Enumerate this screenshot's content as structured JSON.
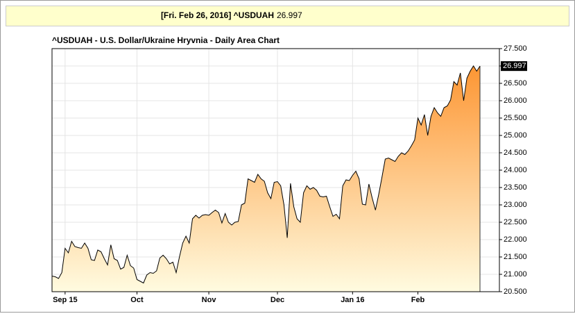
{
  "header": {
    "label": "[Fri. Feb 26, 2016] ^USDUAH"
  },
  "chart_data": {
    "type": "area",
    "title": "^USDUAH - U.S. Dollar/Ukraine Hryvnia - Daily Area Chart",
    "categories": [
      null,
      null,
      null,
      null,
      "Sep 15",
      null,
      null,
      null,
      null,
      null,
      null,
      null,
      null,
      null,
      null,
      null,
      null,
      null,
      null,
      null,
      null,
      null,
      null,
      null,
      null,
      null,
      "Oct",
      null,
      null,
      null,
      null,
      null,
      null,
      null,
      null,
      null,
      null,
      null,
      null,
      null,
      null,
      null,
      null,
      null,
      null,
      null,
      null,
      null,
      "Nov",
      null,
      null,
      null,
      null,
      null,
      null,
      null,
      null,
      null,
      null,
      null,
      null,
      null,
      null,
      null,
      null,
      null,
      null,
      null,
      null,
      "Dec",
      null,
      null,
      null,
      null,
      null,
      null,
      null,
      null,
      null,
      null,
      null,
      null,
      null,
      null,
      null,
      null,
      null,
      null,
      null,
      null,
      null,
      null,
      "Jan 16",
      null,
      null,
      null,
      null,
      null,
      null,
      null,
      null,
      null,
      null,
      null,
      null,
      null,
      null,
      null,
      null,
      null,
      null,
      null,
      "Feb",
      null,
      null,
      null,
      null,
      null,
      null,
      null,
      null,
      null,
      null,
      null,
      null,
      null,
      null,
      null,
      null,
      null,
      null,
      null
    ],
    "values": [
      20.95,
      20.93,
      20.88,
      21.05,
      21.75,
      21.62,
      21.95,
      21.8,
      21.77,
      21.75,
      21.9,
      21.75,
      21.42,
      21.4,
      21.7,
      21.65,
      21.45,
      21.27,
      21.85,
      21.45,
      21.4,
      21.15,
      21.2,
      21.55,
      21.25,
      21.18,
      20.85,
      20.8,
      20.75,
      20.98,
      21.05,
      21.03,
      21.1,
      21.47,
      21.55,
      21.45,
      21.3,
      21.35,
      21.05,
      21.5,
      21.9,
      22.1,
      21.9,
      22.6,
      22.7,
      22.62,
      22.7,
      22.72,
      22.7,
      22.78,
      22.85,
      22.78,
      22.48,
      22.75,
      22.5,
      22.42,
      22.5,
      22.52,
      23.0,
      23.05,
      23.75,
      23.7,
      23.65,
      23.88,
      23.75,
      23.68,
      23.35,
      23.18,
      23.65,
      23.67,
      23.55,
      23.0,
      22.05,
      23.62,
      22.95,
      22.6,
      22.5,
      23.35,
      23.55,
      23.45,
      23.5,
      23.42,
      23.25,
      23.23,
      23.25,
      22.95,
      22.67,
      22.73,
      22.6,
      23.55,
      23.72,
      23.7,
      23.85,
      23.97,
      23.75,
      23.02,
      23.0,
      23.6,
      23.2,
      22.85,
      23.3,
      23.8,
      24.32,
      24.35,
      24.3,
      24.25,
      24.4,
      24.5,
      24.45,
      24.55,
      24.7,
      24.87,
      25.5,
      25.3,
      25.6,
      25.0,
      25.55,
      25.8,
      25.65,
      25.55,
      25.8,
      25.85,
      26.02,
      26.55,
      26.45,
      26.8,
      26.0,
      26.65,
      26.85,
      27.0,
      26.85,
      26.997
    ],
    "color": "#000000",
    "fill_top": "#fd9633",
    "fill_bottom": "#fffbe0",
    "ylim": [
      20.5,
      27.5
    ],
    "yticks": [
      {
        "value": 20.5,
        "label": "20.500"
      },
      {
        "value": 21,
        "label": "21.000"
      },
      {
        "value": 21.5,
        "label": "21.500"
      },
      {
        "value": 22,
        "label": "22.000"
      },
      {
        "value": 22.5,
        "label": "22.500"
      },
      {
        "value": 23,
        "label": "23.000"
      },
      {
        "value": 23.5,
        "label": "23.500"
      },
      {
        "value": 24,
        "label": "24.000"
      },
      {
        "value": 24.5,
        "label": "24.500"
      },
      {
        "value": 25,
        "label": "25.000"
      },
      {
        "value": 25.5,
        "label": "25.500"
      },
      {
        "value": 26,
        "label": "26.000"
      },
      {
        "value": 26.5,
        "label": "26.500"
      },
      {
        "value": 27,
        "label": "27.000"
      },
      {
        "value": 27.5,
        "label": "27.500"
      }
    ],
    "grid": true
  }
}
